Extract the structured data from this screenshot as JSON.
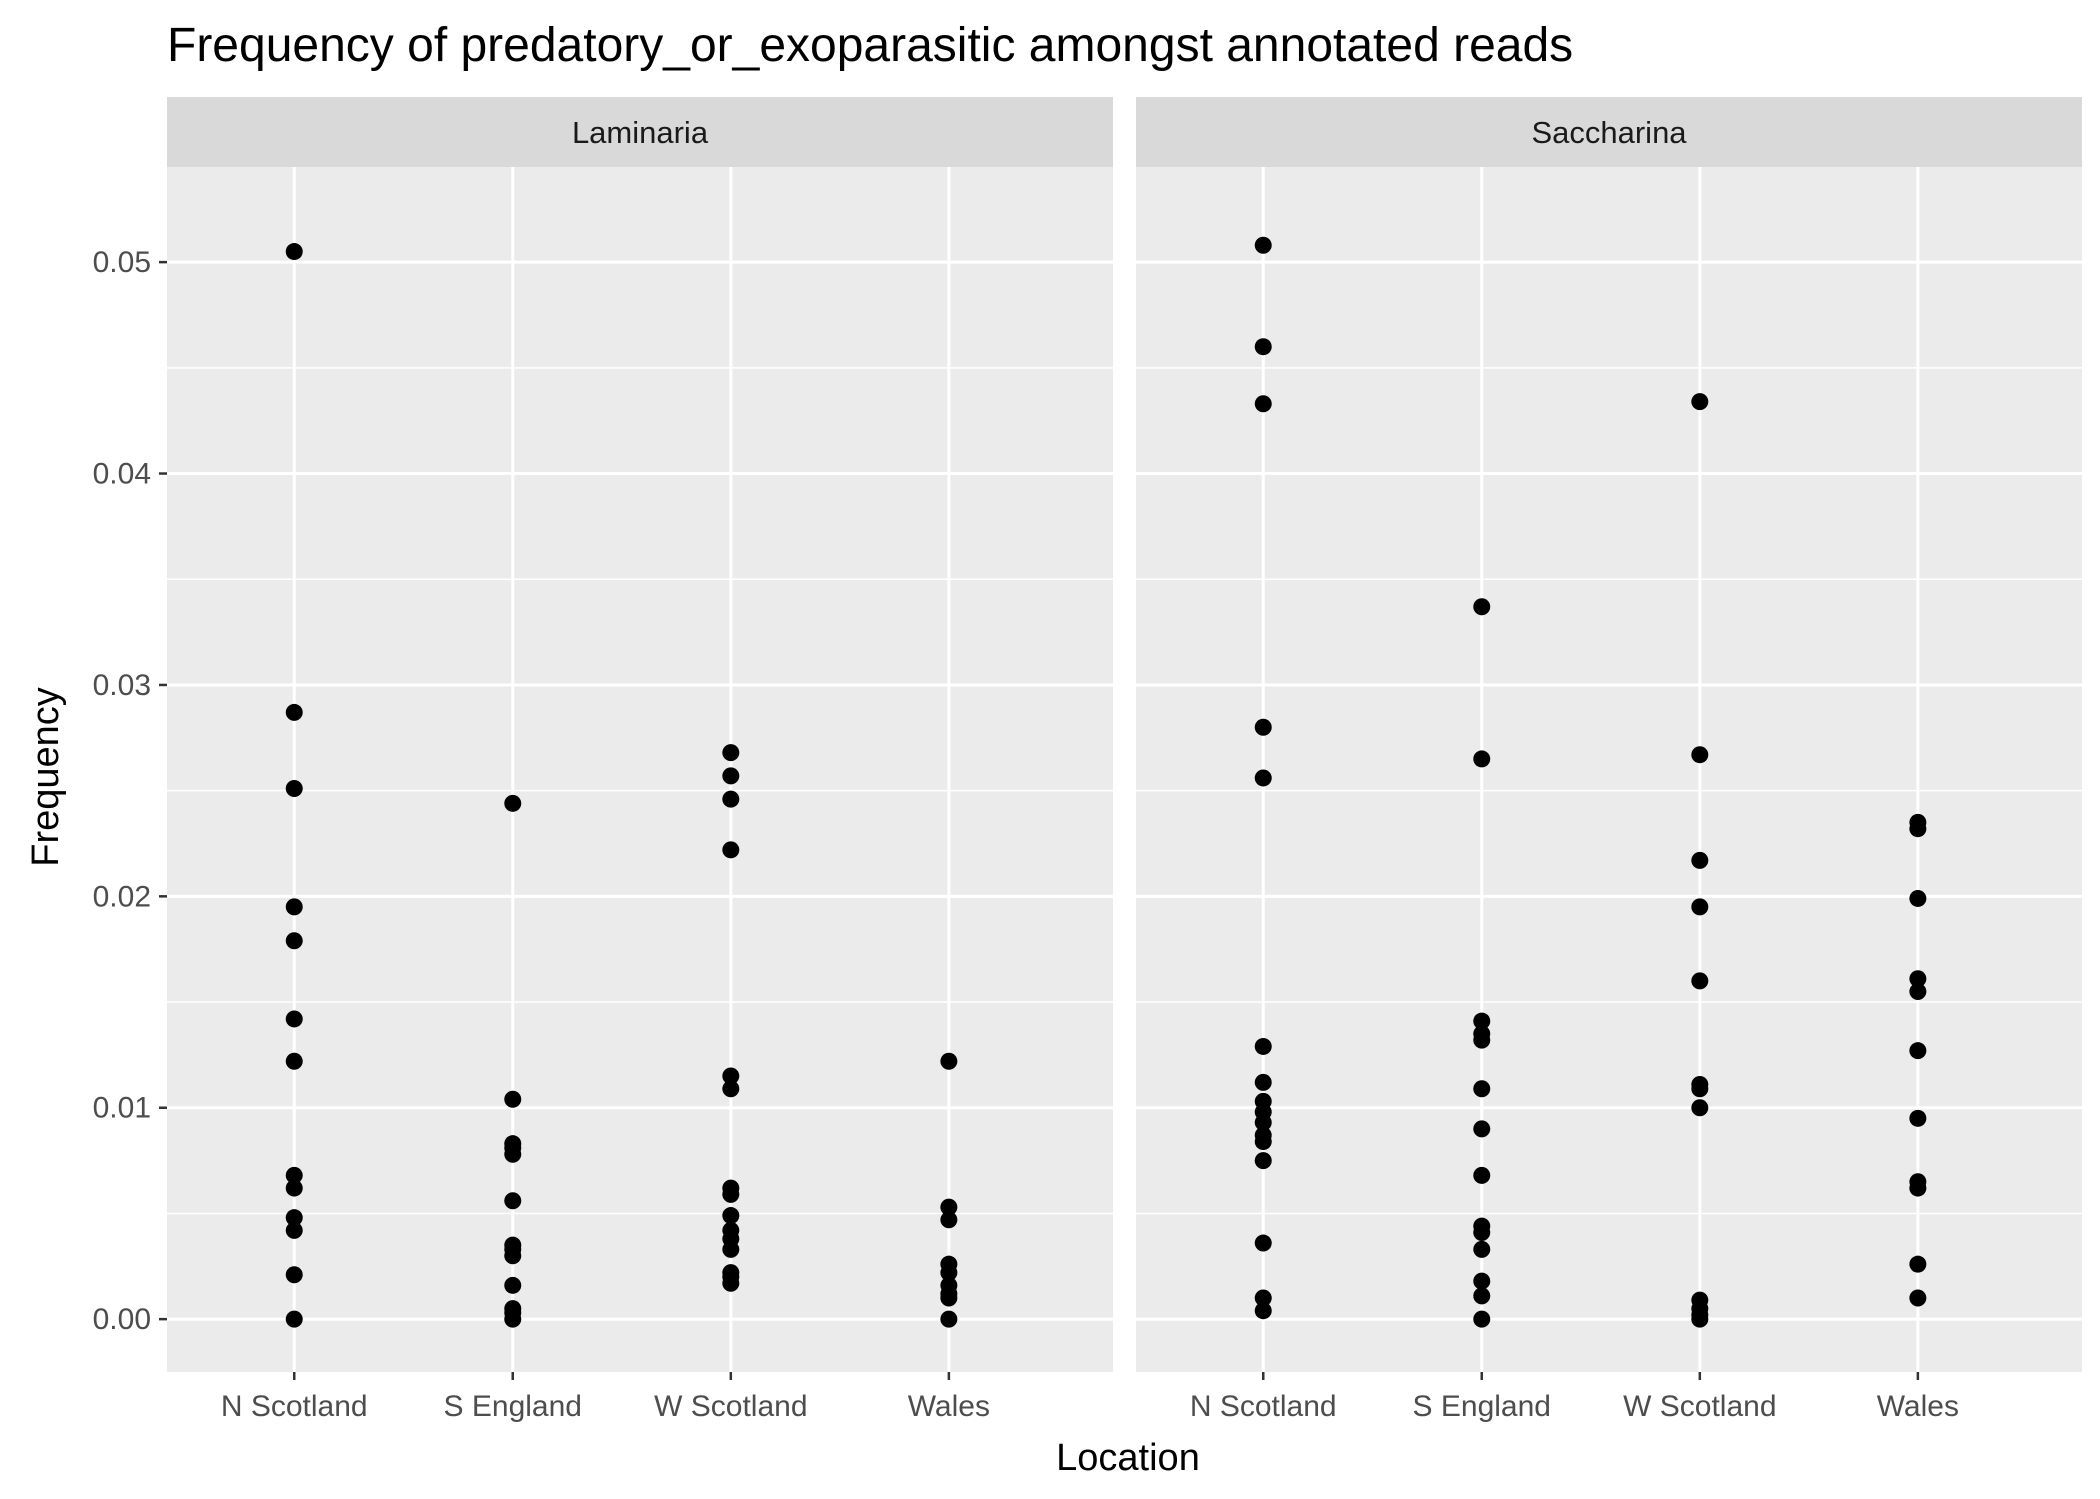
{
  "chart_data": {
    "type": "scatter",
    "title": "Frequency of predatory_or_exoparasitic amongst annotated reads",
    "xlabel": "Location",
    "ylabel": "Frequency",
    "ylim": [
      -0.0025,
      0.0545
    ],
    "yticks": [
      "0.00",
      "0.01",
      "0.02",
      "0.03",
      "0.04",
      "0.05"
    ],
    "categories": [
      "N Scotland",
      "S England",
      "W Scotland",
      "Wales"
    ],
    "grid": true,
    "legend": "none",
    "colors": {
      "panel_bg": "#ebebeb",
      "grid": "#ffffff",
      "strip_bg": "#d9d9d9",
      "point": "#000000",
      "tick": "#333333"
    },
    "panels": [
      {
        "name": "Laminaria",
        "points": {
          "N Scotland": [
            0.0505,
            0.0287,
            0.0251,
            0.0195,
            0.0179,
            0.0142,
            0.0122,
            0.0068,
            0.0062,
            0.0048,
            0.0042,
            0.0021,
            0.0
          ],
          "S England": [
            0.0244,
            0.0104,
            0.0083,
            0.0081,
            0.0078,
            0.0056,
            0.0035,
            0.0033,
            0.003,
            0.0016,
            0.0005,
            0.0003,
            0.0
          ],
          "W Scotland": [
            0.0268,
            0.0257,
            0.0246,
            0.0222,
            0.0115,
            0.0109,
            0.0062,
            0.0059,
            0.0049,
            0.0042,
            0.0038,
            0.0033,
            0.0022,
            0.002,
            0.0017
          ],
          "Wales": [
            0.0122,
            0.0053,
            0.0047,
            0.0026,
            0.0022,
            0.0016,
            0.0012,
            0.001,
            0.0
          ]
        }
      },
      {
        "name": "Saccharina",
        "points": {
          "N Scotland": [
            0.0508,
            0.046,
            0.0433,
            0.028,
            0.0256,
            0.0129,
            0.0112,
            0.0103,
            0.0098,
            0.0093,
            0.0087,
            0.0084,
            0.0075,
            0.0036,
            0.001,
            0.0004
          ],
          "S England": [
            0.0337,
            0.0265,
            0.0141,
            0.0135,
            0.0132,
            0.0109,
            0.009,
            0.0068,
            0.0044,
            0.0041,
            0.0033,
            0.0018,
            0.0011,
            0.0
          ],
          "W Scotland": [
            0.0434,
            0.0267,
            0.0217,
            0.0195,
            0.016,
            0.0111,
            0.0109,
            0.01,
            0.0009,
            0.0005,
            0.0002,
            0.0
          ],
          "Wales": [
            0.0235,
            0.0232,
            0.0199,
            0.0161,
            0.0155,
            0.0127,
            0.0095,
            0.0065,
            0.0062,
            0.0026,
            0.001
          ]
        }
      }
    ]
  }
}
